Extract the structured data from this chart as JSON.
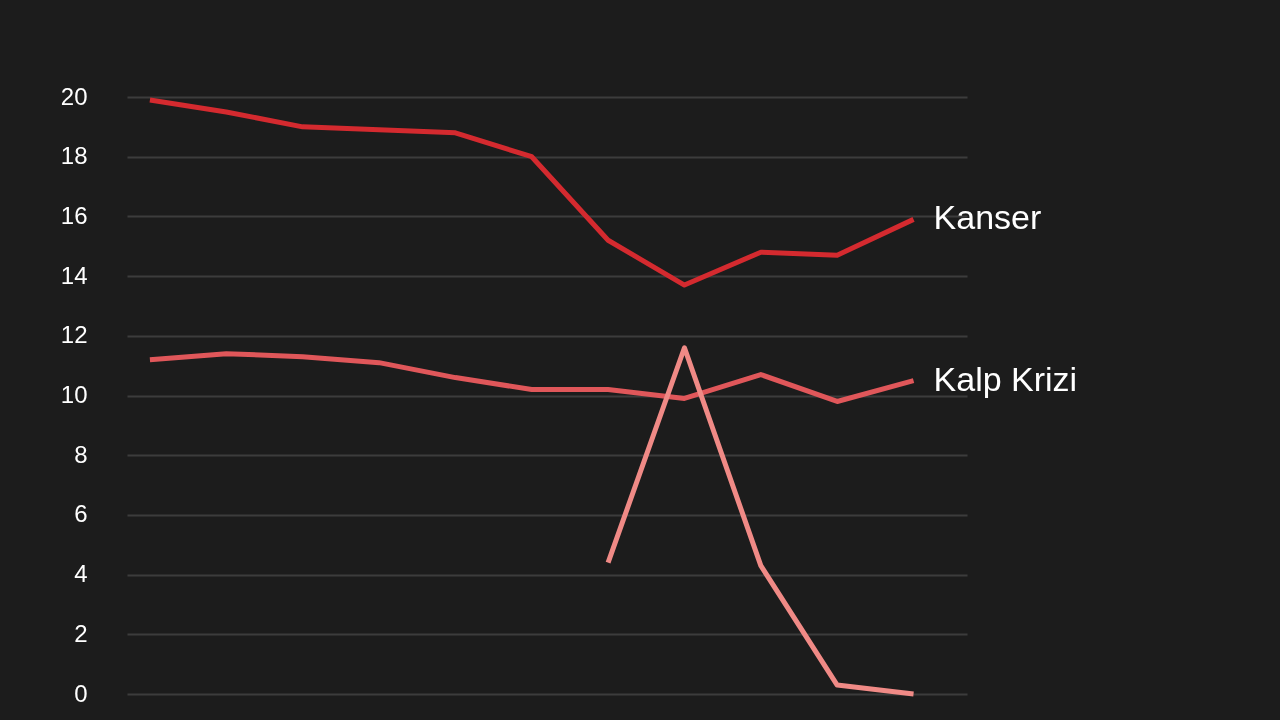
{
  "chart_data": {
    "type": "line",
    "categories": [
      null,
      null,
      null,
      null,
      null,
      null,
      null,
      null,
      null,
      null,
      null
    ],
    "series": [
      {
        "name": "Kanser",
        "color": "#d42a2f",
        "values": [
          19.9,
          19.5,
          19.0,
          18.9,
          18.8,
          18.0,
          15.2,
          13.7,
          14.8,
          14.7,
          15.9
        ]
      },
      {
        "name": "Kalp Krizi",
        "color": "#e0575a",
        "values": [
          11.2,
          11.4,
          11.3,
          11.1,
          10.6,
          10.2,
          10.2,
          9.9,
          10.7,
          9.8,
          10.5
        ]
      },
      {
        "color": "#f08a86",
        "values": [
          null,
          null,
          null,
          null,
          null,
          null,
          4.4,
          11.6,
          4.3,
          0.3,
          0.0
        ]
      }
    ],
    "ylim": [
      0,
      20
    ],
    "yticks": [
      0,
      2,
      4,
      6,
      8,
      10,
      12,
      14,
      16,
      18,
      20
    ],
    "grid": "y",
    "legend": false,
    "tick_labels": "y",
    "marker": "none",
    "line_style": "solid"
  }
}
